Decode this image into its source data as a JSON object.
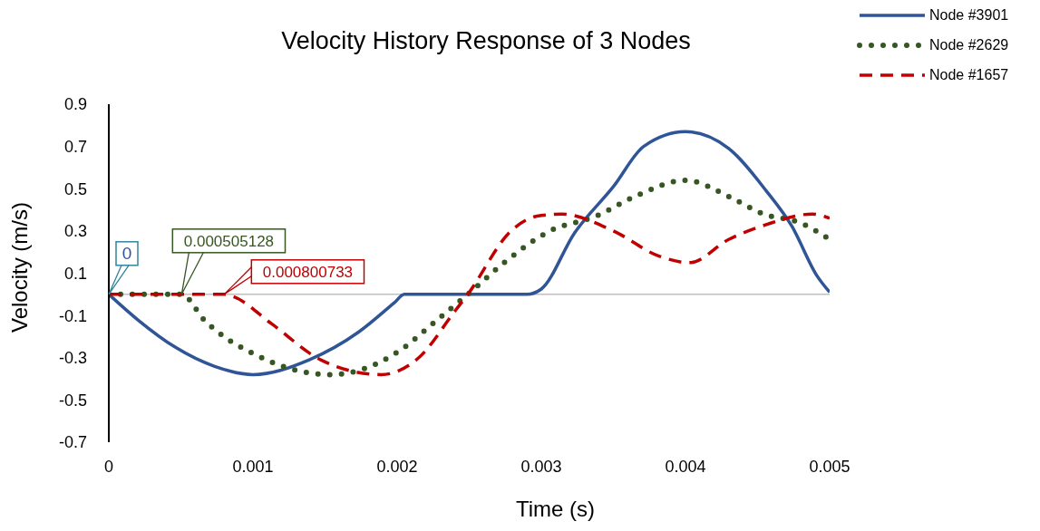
{
  "chart_data": {
    "type": "line",
    "title": "Velocity History Response of 3 Nodes",
    "xlabel": "Time (s)",
    "ylabel": "Velocity (m/s)",
    "xlim": [
      0,
      0.005
    ],
    "xticks": [
      0,
      0.001,
      0.002,
      0.003,
      0.004,
      0.005
    ],
    "ylim": [
      -0.7,
      0.9
    ],
    "yticks": [
      -0.7,
      -0.5,
      -0.3,
      -0.1,
      0.1,
      0.3,
      0.5,
      0.7,
      0.9
    ],
    "grid": false,
    "legend": "top right",
    "marker": "none",
    "ref_lines": [
      {
        "axis": "y",
        "value": 0,
        "color": "#bfbfbf"
      }
    ],
    "annotations": [
      {
        "text": "0",
        "x": 0,
        "y": 0
      },
      {
        "text": "0.000505128",
        "x": 0.000505128,
        "y": 0
      },
      {
        "text": "0.000800733",
        "x": 0.000800733,
        "y": 0
      }
    ],
    "series": [
      {
        "name": "Node #3901",
        "color": "#2f5597",
        "line_style": "solid",
        "x": [
          0,
          0.0002,
          0.00046,
          0.00073,
          0.001,
          0.00139,
          0.00173,
          0.00198,
          0.00205,
          0.0025,
          0.0029,
          0.003,
          0.00323,
          0.0035,
          0.00371,
          0.004,
          0.0043,
          0.00456,
          0.00474,
          0.00491,
          0.005
        ],
        "values": [
          0,
          -0.12,
          -0.25,
          -0.34,
          -0.38,
          -0.31,
          -0.18,
          -0.04,
          0,
          0,
          0,
          0.025,
          0.29,
          0.51,
          0.7,
          0.77,
          0.69,
          0.49,
          0.32,
          0.09,
          0.01
        ]
      },
      {
        "name": "Node #2629",
        "color": "#375623",
        "line_style": "dotted",
        "x": [
          0,
          0.000505128,
          0.00066,
          0.00106,
          0.00137,
          0.00154,
          0.00178,
          0.00201,
          0.00228,
          0.00249,
          0.00276,
          0.00306,
          0.00338,
          0.00367,
          0.004,
          0.00431,
          0.00454,
          0.00479,
          0.005
        ],
        "values": [
          0,
          0,
          -0.12,
          -0.3,
          -0.37,
          -0.38,
          -0.35,
          -0.27,
          -0.12,
          0,
          0.16,
          0.3,
          0.37,
          0.47,
          0.54,
          0.46,
          0.38,
          0.34,
          0.26
        ]
      },
      {
        "name": "Node #1657",
        "color": "#c00000",
        "line_style": "dashed",
        "x": [
          0,
          0.000800733,
          0.00086,
          0.00113,
          0.00147,
          0.00189,
          0.00215,
          0.0024,
          0.00249,
          0.00279,
          0.00297,
          0.00314,
          0.0035,
          0.00382,
          0.00403,
          0.0043,
          0.00456,
          0.00488,
          0.005
        ],
        "values": [
          0,
          0,
          -0.01,
          -0.14,
          -0.31,
          -0.38,
          -0.3,
          -0.08,
          0,
          0.3,
          0.37,
          0.38,
          0.3,
          0.18,
          0.15,
          0.26,
          0.33,
          0.38,
          0.36
        ]
      }
    ]
  }
}
